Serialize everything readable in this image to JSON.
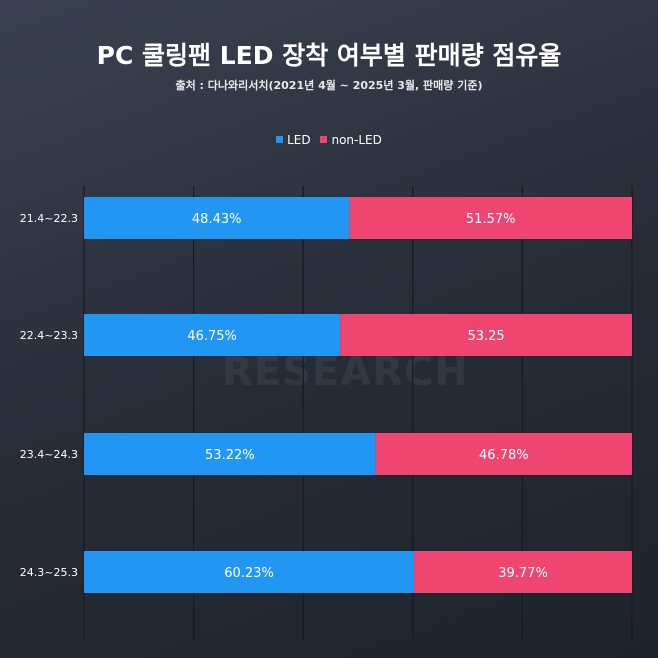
{
  "title": "PC 쿨링팬 LED 장착 여부별 판매량 점유율",
  "subtitle": "출처 : 다나와리서치(2021년 4월 ~ 2025년 3월, 판매량 기준)",
  "watermark": {
    "top": "danawa",
    "bottom": "RESEARCH"
  },
  "chart_data": {
    "type": "bar",
    "orientation": "horizontal",
    "stacked": true,
    "categories": [
      "21.4~22.3",
      "22.4~23.3",
      "23.4~24.3",
      "24.3~25.3"
    ],
    "series": [
      {
        "name": "LED",
        "color": "#2196f3",
        "values": [
          48.43,
          46.75,
          53.22,
          60.23
        ],
        "labels": [
          "48.43%",
          "46.75%",
          "53.22%",
          "60.23%"
        ]
      },
      {
        "name": "non-LED",
        "color": "#ee4670",
        "values": [
          51.57,
          53.25,
          46.78,
          39.77
        ],
        "labels": [
          "51.57%",
          "53.25",
          "46.78%",
          "39.77%"
        ]
      }
    ],
    "xlim": [
      0,
      100
    ],
    "grid": true,
    "legend": "top-center"
  }
}
